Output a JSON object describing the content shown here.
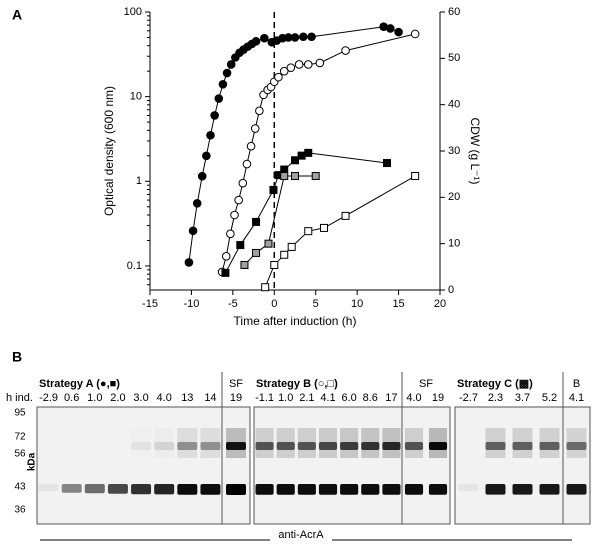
{
  "chart_data": {
    "type": "line",
    "panel_label": "A",
    "x_label": "Time after induction (h)",
    "y_label": "Optical density (600 nm)",
    "y2_label": "CDW (g L⁻¹)",
    "xlim": [
      -15,
      20
    ],
    "xticks": [
      -15,
      -10,
      -5,
      0,
      5,
      10,
      15,
      20
    ],
    "ylim": [
      0.052,
      100
    ],
    "yticks": [
      0.1,
      1,
      10,
      100
    ],
    "y_scale": "log",
    "y2lim": [
      0,
      60
    ],
    "y2ticks": [
      0,
      10,
      20,
      30,
      40,
      50,
      60
    ],
    "vline": 0,
    "color": "#000000",
    "series": [
      {
        "marker": "circle",
        "fill": "#000000",
        "axis": "y",
        "x": [
          -10.3,
          -9.8,
          -9.3,
          -8.7,
          -8.2,
          -7.7,
          -7.2,
          -6.7,
          -6.2,
          -5.7,
          -5.2,
          -4.7,
          -4.2,
          -3.7,
          -3.2,
          -2.7,
          -2.2,
          -1.2,
          -0.3,
          0.3,
          1.0,
          1.7,
          2.5,
          3.5,
          4.5,
          13.2,
          14.0,
          15.0
        ],
        "values": [
          0.11,
          0.26,
          0.55,
          1.15,
          2.0,
          3.5,
          6.0,
          9.5,
          14,
          19,
          24,
          29,
          33,
          36,
          39,
          42,
          45,
          49,
          44,
          46,
          49,
          50,
          50,
          51,
          51,
          67,
          64,
          58
        ]
      },
      {
        "marker": "circle",
        "fill": "#ffffff",
        "axis": "y",
        "x": [
          -6.3,
          -5.8,
          -5.3,
          -4.8,
          -4.3,
          -3.8,
          -3.3,
          -2.8,
          -2.3,
          -1.8,
          -1.3,
          -0.8,
          -0.4,
          0.0,
          0.5,
          1.2,
          2.0,
          3.0,
          4.1,
          5.5,
          8.6,
          17.0
        ],
        "values": [
          0.085,
          0.13,
          0.24,
          0.4,
          0.6,
          0.95,
          1.6,
          2.6,
          4.2,
          6.8,
          10.5,
          12,
          13,
          15,
          17,
          20,
          22,
          24,
          24,
          25,
          35,
          55
        ]
      },
      {
        "marker": "square",
        "fill": "#000000",
        "axis": "y2",
        "x": [
          -5.9,
          -4.1,
          -2.2,
          -0.1,
          0.5,
          1.2,
          2.5,
          3.3,
          4.1,
          13.6
        ],
        "values": [
          3.7,
          9.7,
          14.7,
          21.6,
          24.8,
          26,
          28,
          29,
          29.6,
          27.4
        ]
      },
      {
        "marker": "square",
        "fill": "#a0a0a0",
        "axis": "y2",
        "x": [
          -3.6,
          -2.2,
          -0.7,
          1.2,
          2.5,
          5.0
        ],
        "values": [
          5.4,
          8,
          10,
          24.6,
          24.6,
          24.6
        ]
      },
      {
        "marker": "square",
        "fill": "#ffffff",
        "axis": "y2",
        "x": [
          -1.1,
          0.0,
          1.2,
          2.1,
          4.1,
          6.0,
          8.6,
          17.0
        ],
        "values": [
          0.6,
          5.4,
          7.6,
          9.3,
          12.7,
          13.4,
          16,
          24.6
        ]
      }
    ]
  },
  "blot": {
    "label": "B",
    "row_label": "h ind.",
    "kda_label": "kDa",
    "markers": [
      "95",
      "72",
      "56",
      "43",
      "36"
    ],
    "antibody": "anti-AcrA",
    "panels": [
      {
        "title": "Strategy A (●,■)",
        "lanes": [
          "-2.9",
          "0.6",
          "1.0",
          "2.0",
          "3.0",
          "4.0",
          "13",
          "14"
        ],
        "extra_title": "SF",
        "extra_lanes": [
          "19"
        ]
      },
      {
        "title": "Strategy B (○,□)",
        "lanes": [
          "-1.1",
          "1.0",
          "2.1",
          "4.1",
          "6.0",
          "8.6",
          "17"
        ],
        "extra_title": "SF",
        "extra_lanes": [
          "4.0",
          "19"
        ]
      },
      {
        "title": "Strategy C (▩)",
        "lanes": [
          "-2.7",
          "2.3",
          "3.7",
          "5.2"
        ],
        "extra_title": "B",
        "extra_lanes": [
          "4.1"
        ]
      }
    ]
  }
}
